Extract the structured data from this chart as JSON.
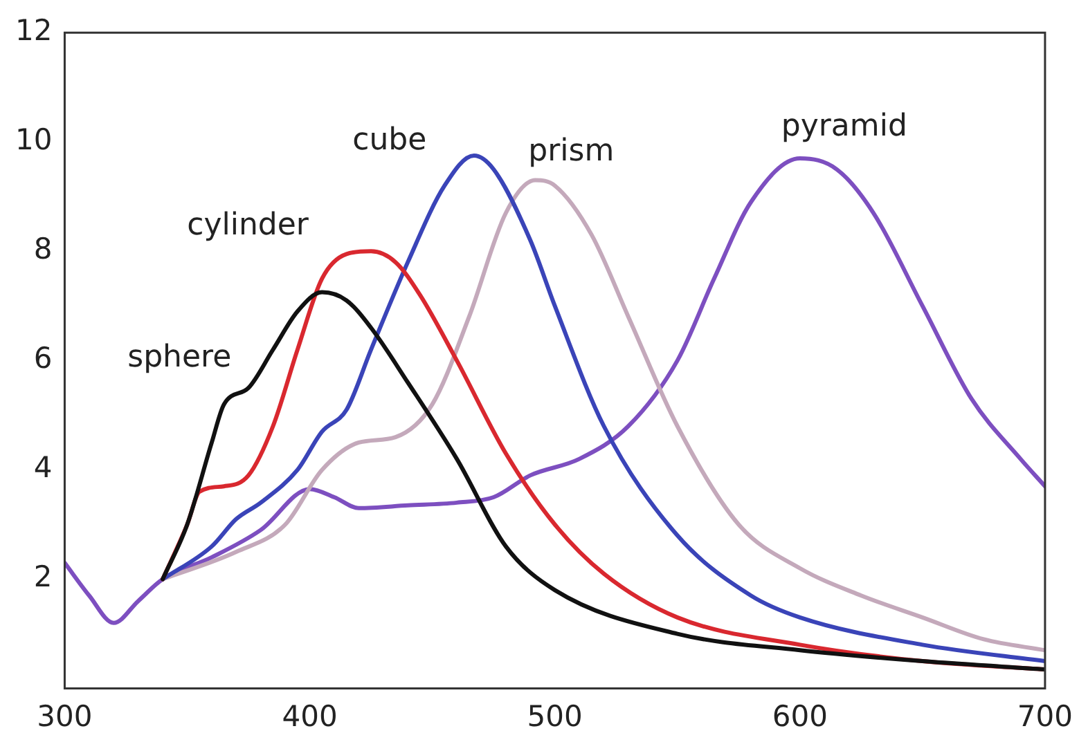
{
  "chart_data": {
    "type": "line",
    "xlim": [
      300,
      700
    ],
    "ylim": [
      0,
      12
    ],
    "xticks": [
      300,
      400,
      500,
      600,
      700
    ],
    "yticks": [
      2,
      4,
      6,
      8,
      10,
      12
    ],
    "grid": false,
    "legend": false,
    "marker": "none",
    "line_style": "solid",
    "series": [
      {
        "name": "sphere",
        "color": "#111111",
        "x": [
          340,
          350,
          360,
          365,
          375,
          385,
          395,
          405,
          415,
          425,
          440,
          460,
          480,
          500,
          550,
          600,
          650,
          700
        ],
        "values": [
          2.0,
          3.0,
          4.5,
          5.2,
          5.5,
          6.2,
          6.9,
          7.25,
          7.1,
          6.6,
          5.6,
          4.2,
          2.6,
          1.8,
          1.0,
          0.7,
          0.5,
          0.35
        ]
      },
      {
        "name": "cylinder",
        "color": "#d9282f",
        "x": [
          340,
          350,
          355,
          365,
          375,
          385,
          395,
          405,
          415,
          425,
          435,
          445,
          460,
          480,
          500,
          520,
          550,
          600,
          650,
          700
        ],
        "values": [
          2.0,
          3.0,
          3.6,
          3.7,
          3.9,
          4.8,
          6.2,
          7.5,
          7.95,
          8.0,
          7.8,
          7.2,
          6.0,
          4.3,
          3.0,
          2.1,
          1.3,
          0.8,
          0.5,
          0.35
        ]
      },
      {
        "name": "cube",
        "color": "#3a44b8",
        "x": [
          340,
          360,
          370,
          380,
          395,
          405,
          415,
          425,
          440,
          455,
          467,
          475,
          490,
          500,
          520,
          550,
          580,
          600,
          650,
          700
        ],
        "values": [
          2.0,
          2.6,
          3.1,
          3.4,
          4.0,
          4.7,
          5.1,
          6.2,
          7.8,
          9.2,
          9.75,
          9.5,
          8.2,
          7.0,
          4.8,
          2.8,
          1.7,
          1.3,
          0.8,
          0.5
        ]
      },
      {
        "name": "prism",
        "color": "#c4a9bb",
        "x": [
          340,
          370,
          390,
          405,
          420,
          435,
          450,
          465,
          480,
          492,
          500,
          515,
          530,
          550,
          575,
          600,
          625,
          650,
          675,
          700
        ],
        "values": [
          2.0,
          2.5,
          3.0,
          4.0,
          4.5,
          4.6,
          5.2,
          6.8,
          8.7,
          9.3,
          9.2,
          8.3,
          6.8,
          4.8,
          3.0,
          2.2,
          1.7,
          1.3,
          0.9,
          0.7
        ]
      },
      {
        "name": "pyramid",
        "color": "#7d4fc0",
        "x": [
          300,
          310,
          320,
          330,
          340,
          360,
          380,
          400,
          410,
          420,
          440,
          460,
          475,
          490,
          510,
          530,
          550,
          565,
          580,
          600,
          615,
          630,
          650,
          670,
          690,
          700
        ],
        "values": [
          2.3,
          1.7,
          1.2,
          1.6,
          2.0,
          2.4,
          2.9,
          3.65,
          3.5,
          3.3,
          3.35,
          3.4,
          3.5,
          3.9,
          4.2,
          4.8,
          6.0,
          7.5,
          8.9,
          9.7,
          9.5,
          8.7,
          7.0,
          5.3,
          4.2,
          3.7
        ]
      }
    ]
  }
}
